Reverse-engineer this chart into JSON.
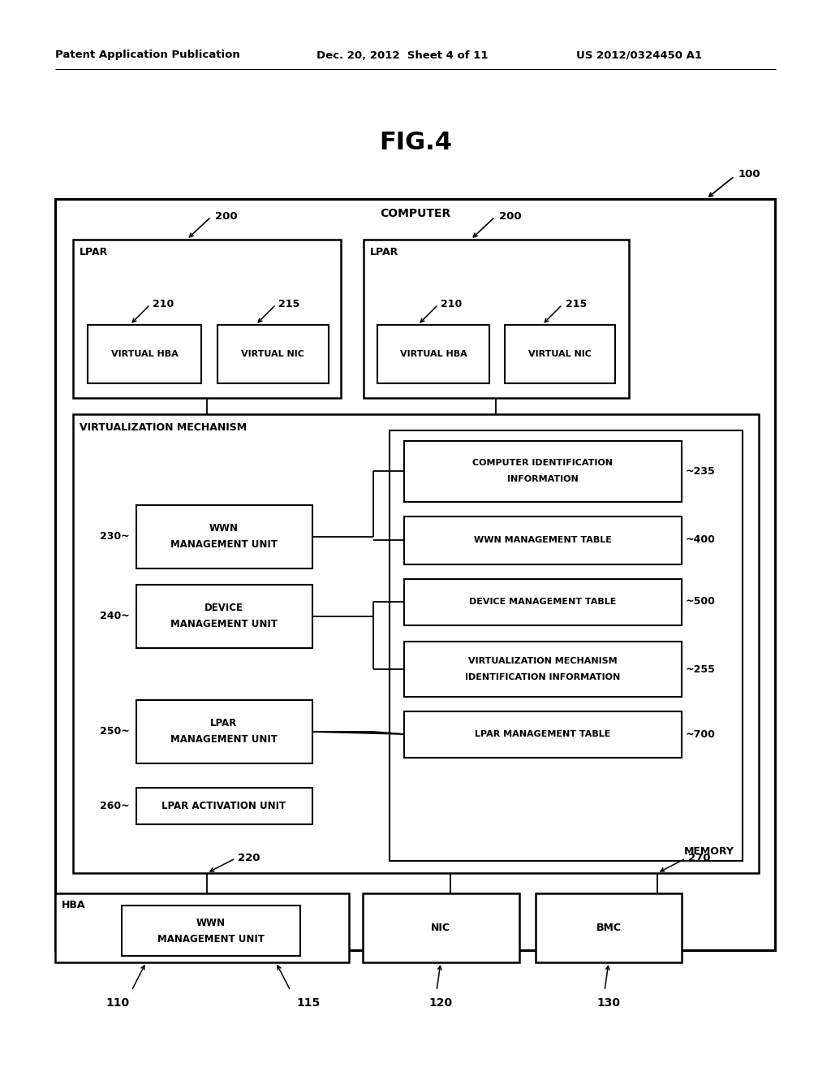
{
  "bg_color": "#ffffff",
  "header_left": "Patent Application Publication",
  "header_mid": "Dec. 20, 2012  Sheet 4 of 11",
  "header_right": "US 2012/0324450 A1",
  "fig_title": "FIG.4"
}
